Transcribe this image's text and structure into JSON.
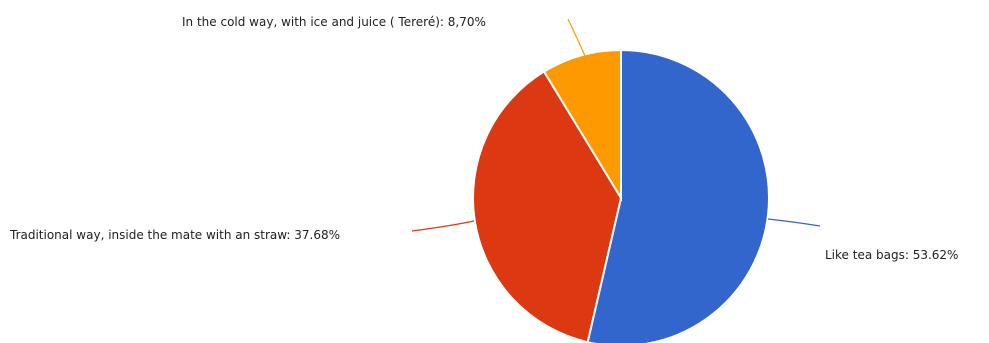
{
  "chart_data": {
    "type": "pie",
    "title": "",
    "slices": [
      {
        "label": "Like tea bags",
        "value": 53.62,
        "display": "53.62%",
        "color": "#3366cc"
      },
      {
        "label": "Traditional way, inside the mate with an straw",
        "value": 37.68,
        "display": "37.68%",
        "color": "#dc3912"
      },
      {
        "label": "In the cold way, with ice and juice ( Tereré)",
        "value": 8.7,
        "display": "8,70%",
        "color": "#ff9900"
      }
    ],
    "start_position": "top",
    "direction": "clockwise",
    "legend": "none",
    "data_labels": "outside with leader lines"
  }
}
